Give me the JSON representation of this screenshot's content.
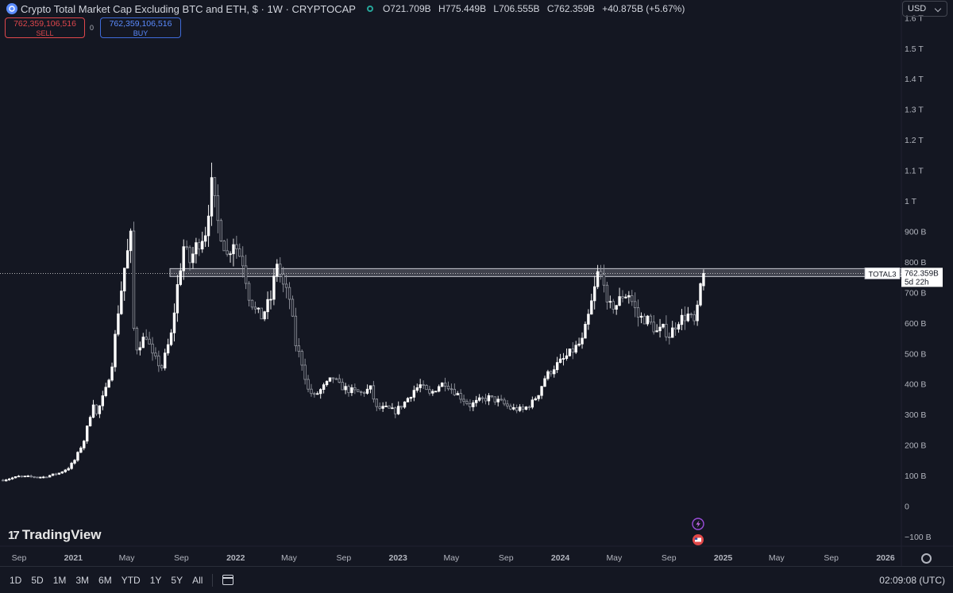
{
  "header": {
    "title": "Crypto Total Market Cap Excluding BTC and ETH, $ · 1W · CRYPTOCAP",
    "ohlc": {
      "o_label": "O",
      "o": "721.709B",
      "h_label": "H",
      "h": "775.449B",
      "l_label": "L",
      "l": "706.555B",
      "c_label": "C",
      "c": "762.359B",
      "change": "+40.875B (+5.67%)"
    }
  },
  "trade": {
    "sell_price": "762,359,106,516",
    "sell_label": "SELL",
    "spread": "0",
    "buy_price": "762,359,106,516",
    "buy_label": "BUY"
  },
  "currency": "USD",
  "price_tag": {
    "symbol": "TOTAL3",
    "price": "762.359B",
    "countdown": "5d 22h"
  },
  "branding": "TradingView",
  "toolbar": {
    "ranges": [
      "1D",
      "5D",
      "1M",
      "3M",
      "6M",
      "YTD",
      "1Y",
      "5Y",
      "All"
    ],
    "clock": "02:09:08 (UTC)"
  },
  "colors": {
    "background": "#141722",
    "candle": "#ffffff",
    "zone": "#b2b5be",
    "accent": "#5b8cff"
  },
  "chart_data": {
    "type": "candlestick",
    "title": "Crypto Total Market Cap Excluding BTC and ETH, $ · 1W · CRYPTOCAP",
    "y_tick_labels": [
      "−100 B",
      "0",
      "100 B",
      "200 B",
      "300 B",
      "400 B",
      "500 B",
      "600 B",
      "700 B",
      "800 B",
      "900 B",
      "1 T",
      "1.1 T",
      "1.2 T",
      "1.3 T",
      "1.4 T",
      "1.5 T",
      "1.6 T"
    ],
    "y_tick_values": [
      -100,
      0,
      100,
      200,
      300,
      400,
      500,
      600,
      700,
      800,
      900,
      1000,
      1100,
      1200,
      1300,
      1400,
      1500,
      1600
    ],
    "y_unit": "B USD",
    "x_tick_labels": [
      "Sep",
      "2021",
      "May",
      "Sep",
      "2022",
      "May",
      "Sep",
      "2023",
      "May",
      "Sep",
      "2024",
      "May",
      "Sep",
      "2025",
      "May",
      "Sep",
      "2026"
    ],
    "x_tick_dates": [
      "2020-09-01",
      "2021-01-01",
      "2021-05-01",
      "2021-09-01",
      "2022-01-01",
      "2022-05-01",
      "2022-09-01",
      "2023-01-01",
      "2023-05-01",
      "2023-09-01",
      "2024-01-01",
      "2024-05-01",
      "2024-09-01",
      "2025-01-01",
      "2025-05-01",
      "2025-09-01",
      "2026-01-01"
    ],
    "x_tick_bold": [
      false,
      true,
      false,
      false,
      true,
      false,
      false,
      true,
      false,
      false,
      true,
      false,
      false,
      true,
      false,
      false,
      true
    ],
    "resistance_zone": [
      752,
      778
    ],
    "last_price": 762.359,
    "series_path": [
      [
        "2020-07-27",
        85
      ],
      [
        "2020-08-31",
        97
      ],
      [
        "2020-10-26",
        95
      ],
      [
        "2020-11-30",
        108
      ],
      [
        "2020-12-21",
        125
      ],
      [
        "2021-01-04",
        150
      ],
      [
        "2021-01-25",
        215
      ],
      [
        "2021-02-15",
        340
      ],
      [
        "2021-02-22",
        300
      ],
      [
        "2021-03-15",
        380
      ],
      [
        "2021-03-29",
        470
      ],
      [
        "2021-04-12",
        640
      ],
      [
        "2021-04-26",
        780
      ],
      [
        "2021-05-10",
        880
      ],
      [
        "2021-05-17",
        580
      ],
      [
        "2021-05-24",
        520
      ],
      [
        "2021-06-14",
        560
      ],
      [
        "2021-06-28",
        490
      ],
      [
        "2021-07-19",
        455
      ],
      [
        "2021-08-09",
        560
      ],
      [
        "2021-08-23",
        720
      ],
      [
        "2021-09-06",
        850
      ],
      [
        "2021-09-20",
        800
      ],
      [
        "2021-10-04",
        850
      ],
      [
        "2021-10-25",
        900
      ],
      [
        "2021-11-08",
        1050
      ],
      [
        "2021-11-22",
        930
      ],
      [
        "2021-12-13",
        820
      ],
      [
        "2021-12-27",
        870
      ],
      [
        "2022-01-17",
        800
      ],
      [
        "2022-01-31",
        690
      ],
      [
        "2022-02-14",
        640
      ],
      [
        "2022-02-28",
        620
      ],
      [
        "2022-03-21",
        680
      ],
      [
        "2022-04-04",
        800
      ],
      [
        "2022-04-18",
        720
      ],
      [
        "2022-05-02",
        680
      ],
      [
        "2022-05-16",
        530
      ],
      [
        "2022-05-30",
        470
      ],
      [
        "2022-06-13",
        380
      ],
      [
        "2022-06-27",
        360
      ],
      [
        "2022-07-18",
        390
      ],
      [
        "2022-08-08",
        420
      ],
      [
        "2022-08-22",
        395
      ],
      [
        "2022-09-12",
        380
      ],
      [
        "2022-10-10",
        370
      ],
      [
        "2022-10-31",
        385
      ],
      [
        "2022-11-14",
        320
      ],
      [
        "2022-12-05",
        320
      ],
      [
        "2022-12-26",
        310
      ],
      [
        "2023-01-16",
        340
      ],
      [
        "2023-02-06",
        380
      ],
      [
        "2023-02-20",
        395
      ],
      [
        "2023-03-13",
        365
      ],
      [
        "2023-04-03",
        395
      ],
      [
        "2023-04-17",
        405
      ],
      [
        "2023-05-08",
        375
      ],
      [
        "2023-06-12",
        330
      ],
      [
        "2023-07-03",
        345
      ],
      [
        "2023-07-24",
        355
      ],
      [
        "2023-08-21",
        340
      ],
      [
        "2023-09-11",
        320
      ],
      [
        "2023-10-09",
        315
      ],
      [
        "2023-10-30",
        340
      ],
      [
        "2023-11-13",
        370
      ],
      [
        "2023-11-27",
        420
      ],
      [
        "2023-12-18",
        455
      ],
      [
        "2024-01-08",
        480
      ],
      [
        "2024-01-29",
        510
      ],
      [
        "2024-02-19",
        540
      ],
      [
        "2024-03-04",
        620
      ],
      [
        "2024-03-18",
        710
      ],
      [
        "2024-03-25",
        760
      ],
      [
        "2024-04-08",
        745
      ],
      [
        "2024-04-15",
        650
      ],
      [
        "2024-05-06",
        660
      ],
      [
        "2024-05-20",
        690
      ],
      [
        "2024-06-03",
        695
      ],
      [
        "2024-06-24",
        620
      ],
      [
        "2024-07-15",
        610
      ],
      [
        "2024-08-05",
        570
      ],
      [
        "2024-08-19",
        580
      ],
      [
        "2024-09-02",
        560
      ],
      [
        "2024-09-23",
        610
      ],
      [
        "2024-10-14",
        625
      ],
      [
        "2024-10-28",
        600
      ],
      [
        "2024-11-04",
        640
      ],
      [
        "2024-11-11",
        721.7
      ],
      [
        "2024-11-18",
        762.4
      ]
    ]
  }
}
